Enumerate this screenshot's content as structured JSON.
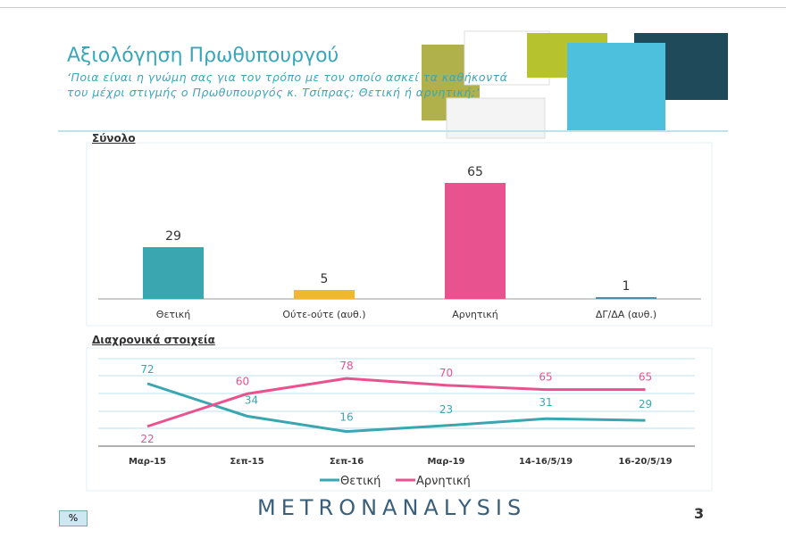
{
  "header": {
    "title": "Αξιολόγηση Πρωθυπουργού",
    "subtitle": "‘Ποια είναι η γνώμη σας για τον τρόπο με τον οποίο ασκεί τα καθήκοντά του μέχρι στιγμής ο Πρωθυπουργός κ. Τσίπρας; Θετική ή αρνητική;’"
  },
  "footer": {
    "unit_badge": "%",
    "logo": "METRONANALYSIS",
    "page_number": "3"
  },
  "colors": {
    "positive": "#3aa6b0",
    "negative": "#e8538f",
    "neutral": "#f2b632",
    "dk": "#4a90a8",
    "accent": "#3aa6b9"
  },
  "chart_data": [
    {
      "type": "bar",
      "title": "Σύνολο",
      "categories": [
        "Θετική",
        "Ούτε-ούτε (αυθ.)",
        "Αρνητική",
        "ΔΓ/ΔΑ (αυθ.)"
      ],
      "values": [
        29,
        5,
        65,
        1
      ]
    },
    {
      "type": "line",
      "title": "Διαχρονικά στοιχεία",
      "categories": [
        "Μαρ-15",
        "Σεπ-15",
        "Σεπ-16",
        "Μαρ-19",
        "14-16/5/19",
        "16-20/5/19"
      ],
      "series": [
        {
          "name": "Θετική",
          "values": [
            72,
            34,
            16,
            23,
            31,
            29
          ]
        },
        {
          "name": "Αρνητική",
          "values": [
            22,
            60,
            78,
            70,
            65,
            65
          ]
        }
      ],
      "legend": "bottom",
      "grid": true
    }
  ]
}
